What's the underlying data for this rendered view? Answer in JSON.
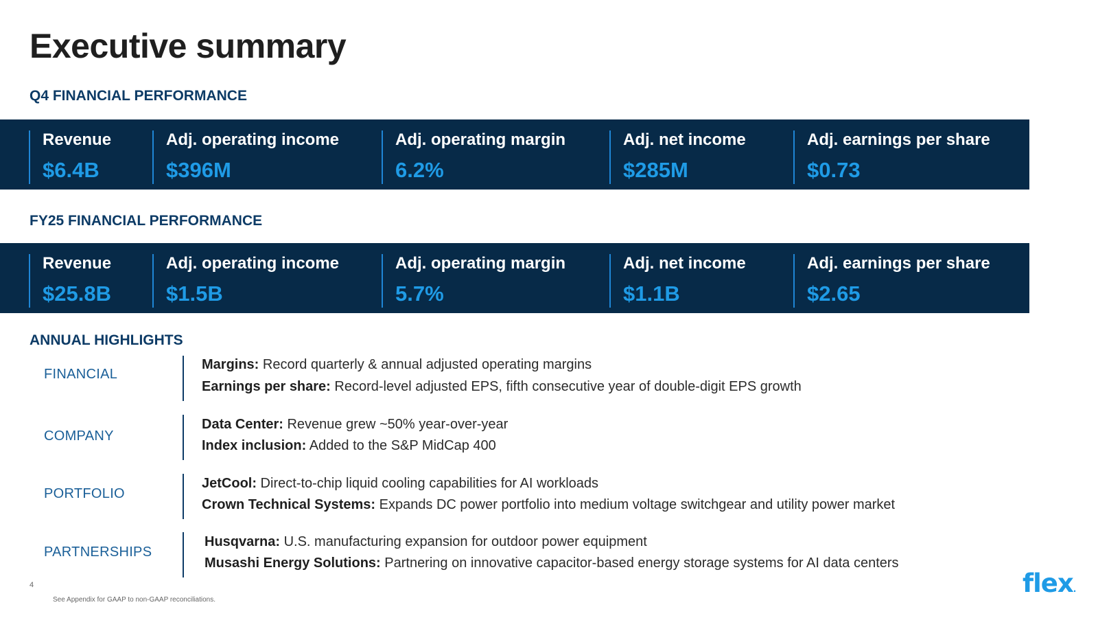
{
  "page": {
    "title": "Executive summary",
    "page_number": "4",
    "footnote": "See Appendix for GAAP to non-GAAP reconciliations."
  },
  "q4": {
    "heading": "Q4 FINANCIAL PERFORMANCE",
    "metrics": [
      {
        "label": "Revenue",
        "value": "$6.4B"
      },
      {
        "label": "Adj. operating income",
        "value": "$396M"
      },
      {
        "label": "Adj. operating margin",
        "value": "6.2%"
      },
      {
        "label": "Adj. net income",
        "value": "$285M"
      },
      {
        "label": "Adj. earnings per share",
        "value": "$0.73"
      }
    ]
  },
  "fy25": {
    "heading": "FY25 FINANCIAL PERFORMANCE",
    "metrics": [
      {
        "label": "Revenue",
        "value": "$25.8B"
      },
      {
        "label": "Adj. operating income",
        "value": "$1.5B"
      },
      {
        "label": "Adj. operating margin",
        "value": "5.7%"
      },
      {
        "label": "Adj. net income",
        "value": "$1.1B"
      },
      {
        "label": "Adj. earnings per share",
        "value": "$2.65"
      }
    ]
  },
  "highlights": {
    "heading": "ANNUAL HIGHLIGHTS",
    "rows": [
      {
        "category": "FINANCIAL",
        "items": [
          {
            "bold": "Margins:",
            "text": " Record quarterly & annual adjusted operating margins"
          },
          {
            "bold": "Earnings per share:",
            "text": " Record-level adjusted EPS, fifth consecutive year of double-digit EPS growth"
          }
        ]
      },
      {
        "category": "COMPANY",
        "items": [
          {
            "bold": "Data Center:",
            "text": " Revenue grew ~50% year-over-year"
          },
          {
            "bold": "Index inclusion:",
            "text": " Added to the S&P MidCap 400"
          }
        ]
      },
      {
        "category": "PORTFOLIO",
        "items": [
          {
            "bold": "JetCool:",
            "text": " Direct-to-chip liquid cooling capabilities for AI workloads"
          },
          {
            "bold": "Crown Technical Systems:",
            "text": " Expands DC power portfolio into medium voltage switchgear and utility power market"
          }
        ]
      },
      {
        "category": "PARTNERSHIPS",
        "items": [
          {
            "bold": "Husqvarna:",
            "text": " U.S. manufacturing expansion for outdoor power equipment"
          },
          {
            "bold": "Musashi Energy Solutions:",
            "text": " Partnering on innovative capacitor-based energy storage systems for AI data centers"
          }
        ]
      }
    ]
  },
  "logo": {
    "text": "flex",
    "dot": "."
  },
  "colors": {
    "band": "#072a48",
    "accent": "#1f9be6",
    "heading": "#0d3b66",
    "category": "#1a5f98"
  }
}
